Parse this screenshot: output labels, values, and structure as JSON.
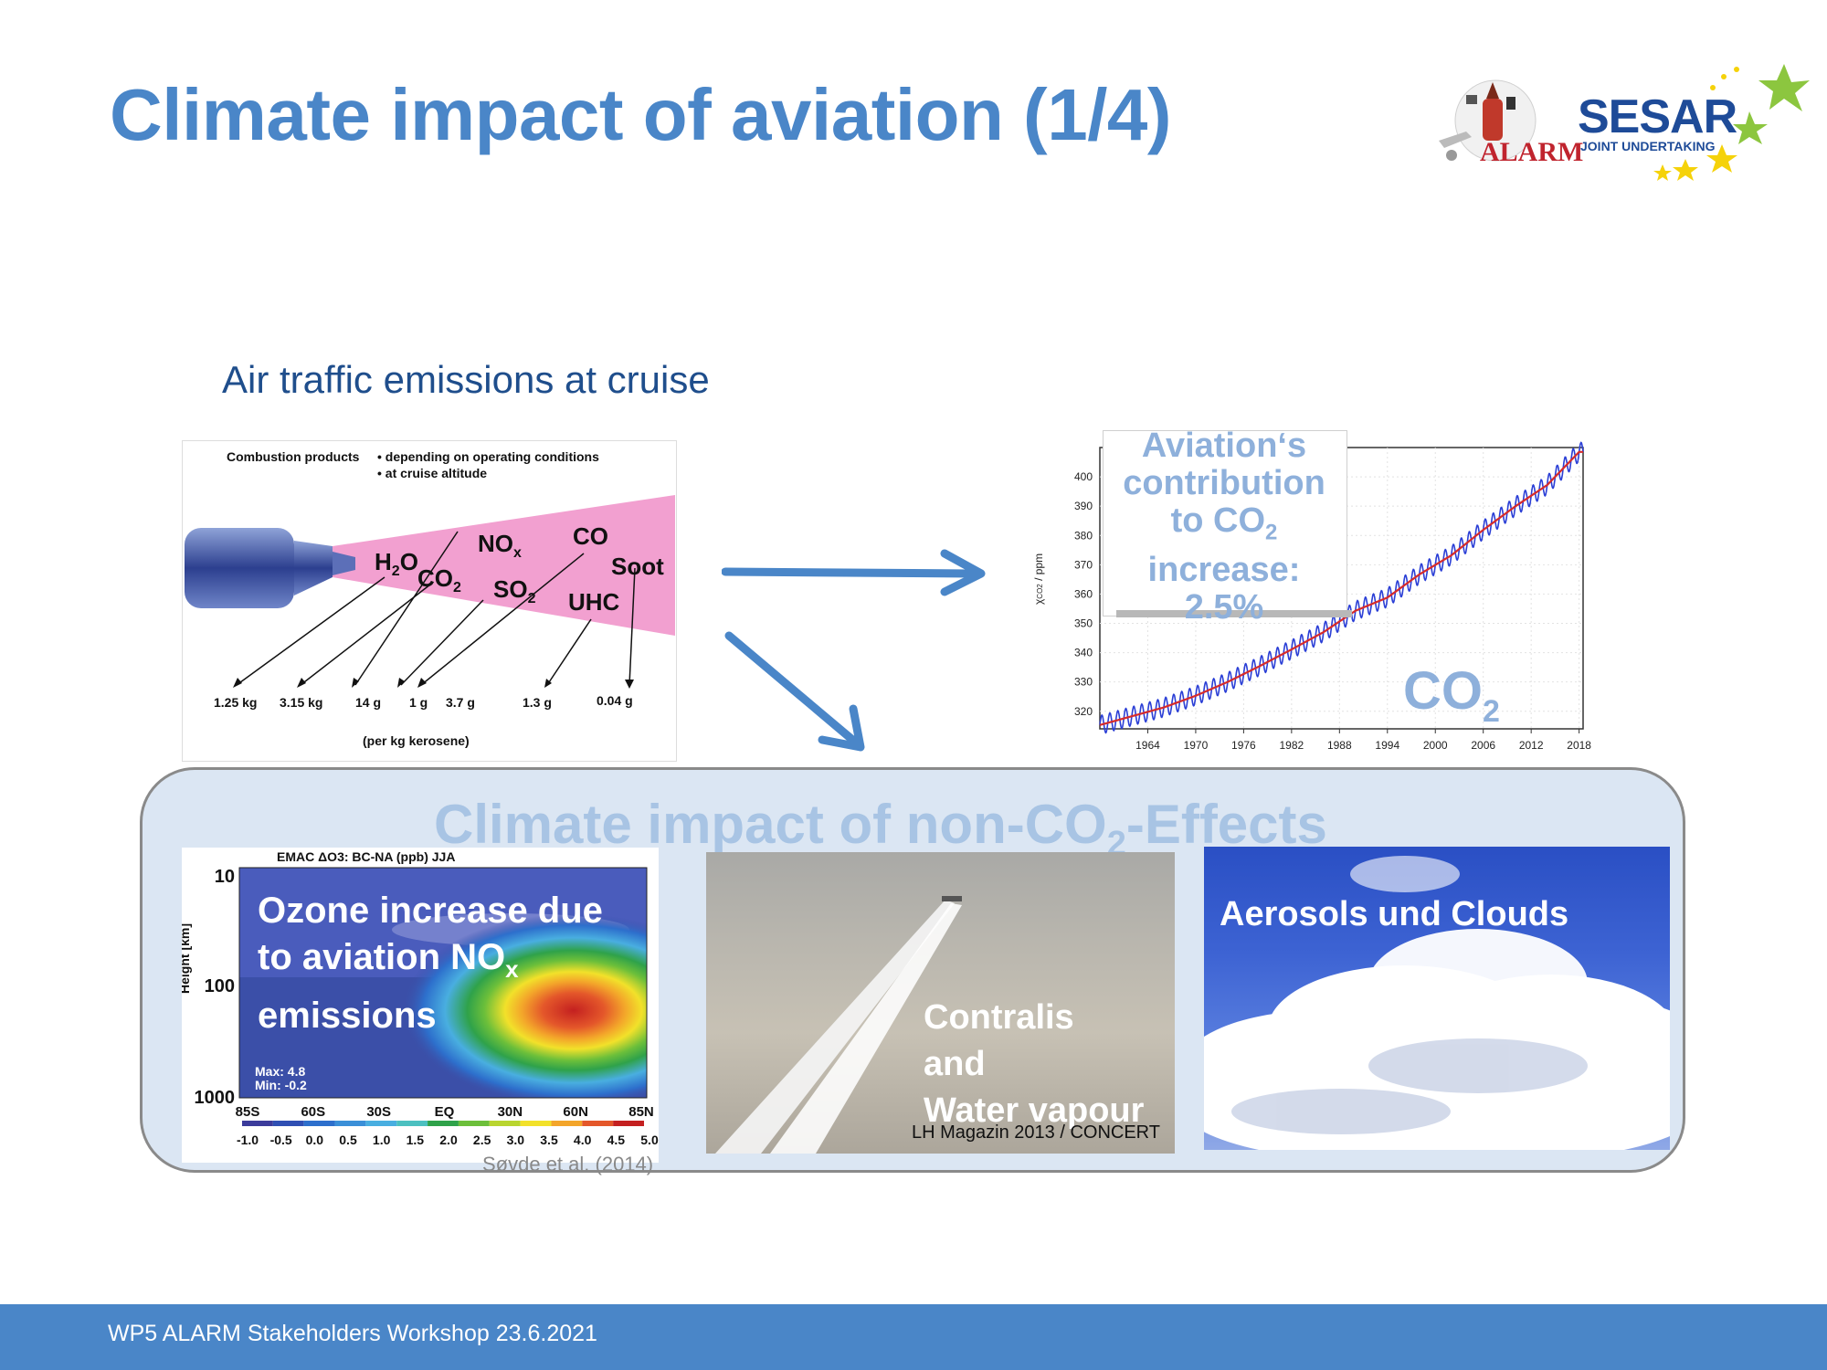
{
  "slide": {
    "title": "Climate impact of aviation (1/4)",
    "subtitle": "Air traffic emissions at cruise",
    "footer": "WP5 ALARM Stakeholders Workshop 23.6.2021"
  },
  "logos": {
    "alarm": "ALARM",
    "sesar": "SESAR",
    "sesar_sub": "JOINT UNDERTAKING"
  },
  "engine_figure": {
    "header_left": "Combustion products",
    "header_right_1": "• depending on operating conditions",
    "header_right_2": "• at cruise altitude",
    "species": {
      "h2o": "H",
      "h2o_sub": "2",
      "h2o_end": "O",
      "co2": "CO",
      "co2_sub": "2",
      "nox": "NO",
      "nox_sub": "x",
      "so2": "SO",
      "so2_sub": "2",
      "co": "CO",
      "uhc": "UHC",
      "soot": "Soot"
    },
    "amounts": [
      "1.25 kg",
      "3.15 kg",
      "14 g",
      "1 g",
      "3.7 g",
      "1.3 g",
      "0.04 g"
    ],
    "unit_note": "(per kg kerosene)"
  },
  "co2_chart": {
    "callout_line1": "Aviation‘s",
    "callout_line2": "contribution",
    "callout_line3a": "to CO",
    "callout_line3_sub": "2",
    "callout_line4": "increase:",
    "callout_line5": "2.5%",
    "watermark": "CO",
    "watermark_sub": "2",
    "ylabel": "χ",
    "ylabel_sub": "CO2",
    "ylabel_unit": " / ppm",
    "y_ticks": [
      "320",
      "330",
      "340",
      "350",
      "360",
      "370",
      "380",
      "390",
      "400"
    ],
    "x_ticks": [
      "1964",
      "1970",
      "1976",
      "1982",
      "1988",
      "1994",
      "2000",
      "2006",
      "2012",
      "2018"
    ]
  },
  "chart_data": {
    "type": "line",
    "xlim": [
      1958,
      2018.5
    ],
    "ylim": [
      314,
      410
    ],
    "trend": [
      [
        1958,
        315.3
      ],
      [
        1962,
        318.3
      ],
      [
        1966,
        321.3
      ],
      [
        1970,
        325.3
      ],
      [
        1974,
        330.0
      ],
      [
        1978,
        335.4
      ],
      [
        1982,
        341.1
      ],
      [
        1986,
        347.0
      ],
      [
        1990,
        354.3
      ],
      [
        1994,
        358.8
      ],
      [
        1998,
        366.7
      ],
      [
        2002,
        373.2
      ],
      [
        2006,
        381.9
      ],
      [
        2010,
        389.9
      ],
      [
        2014,
        397.2
      ],
      [
        2018,
        408.5
      ]
    ],
    "seasonal_amplitude": 3.2,
    "series": [
      {
        "name": "",
        "color": "#2b3fd6"
      },
      {
        "name": "",
        "color": "#d62b2b"
      }
    ],
    "grid": true
  },
  "panel": {
    "title": "Climate impact of non-CO",
    "title_sub": "2",
    "title_end": "-Effects"
  },
  "ozone": {
    "chart_title": "EMAC ΔO3: BC-NA (ppb) JJA",
    "overlay_1": "Ozone increase due",
    "overlay_2": "to aviation NO",
    "overlay_2_sub": "x",
    "overlay_3": "emissions",
    "ylabel": "Height [km]",
    "y_ticks": [
      "10",
      "100",
      "1000"
    ],
    "x_ticks": [
      "85S",
      "60S",
      "30S",
      "EQ",
      "30N",
      "60N",
      "85N"
    ],
    "max_label": "Max:  4.8",
    "min_label": "Min:  -0.2",
    "scale": [
      "-1.0",
      "-0.5",
      "0.0",
      "0.5",
      "1.0",
      "1.5",
      "2.0",
      "2.5",
      "3.0",
      "3.5",
      "4.0",
      "4.5",
      "5.0"
    ],
    "colors": [
      "#3b3b9b",
      "#2f4fb3",
      "#2d6fcc",
      "#3a8fd8",
      "#49aee0",
      "#4cc0c0",
      "#2fa24a",
      "#6cbf3a",
      "#b9d52f",
      "#f2e12a",
      "#f3a52a",
      "#e4572a",
      "#c42020"
    ],
    "citation": "Søvde et al. (2014)"
  },
  "contrail": {
    "overlay_1": "Contralis",
    "overlay_2": "and",
    "overlay_3": "Water vapour",
    "credit": "LH Magazin 2013 / CONCERT"
  },
  "clouds": {
    "overlay": "Aerosols und Clouds"
  }
}
